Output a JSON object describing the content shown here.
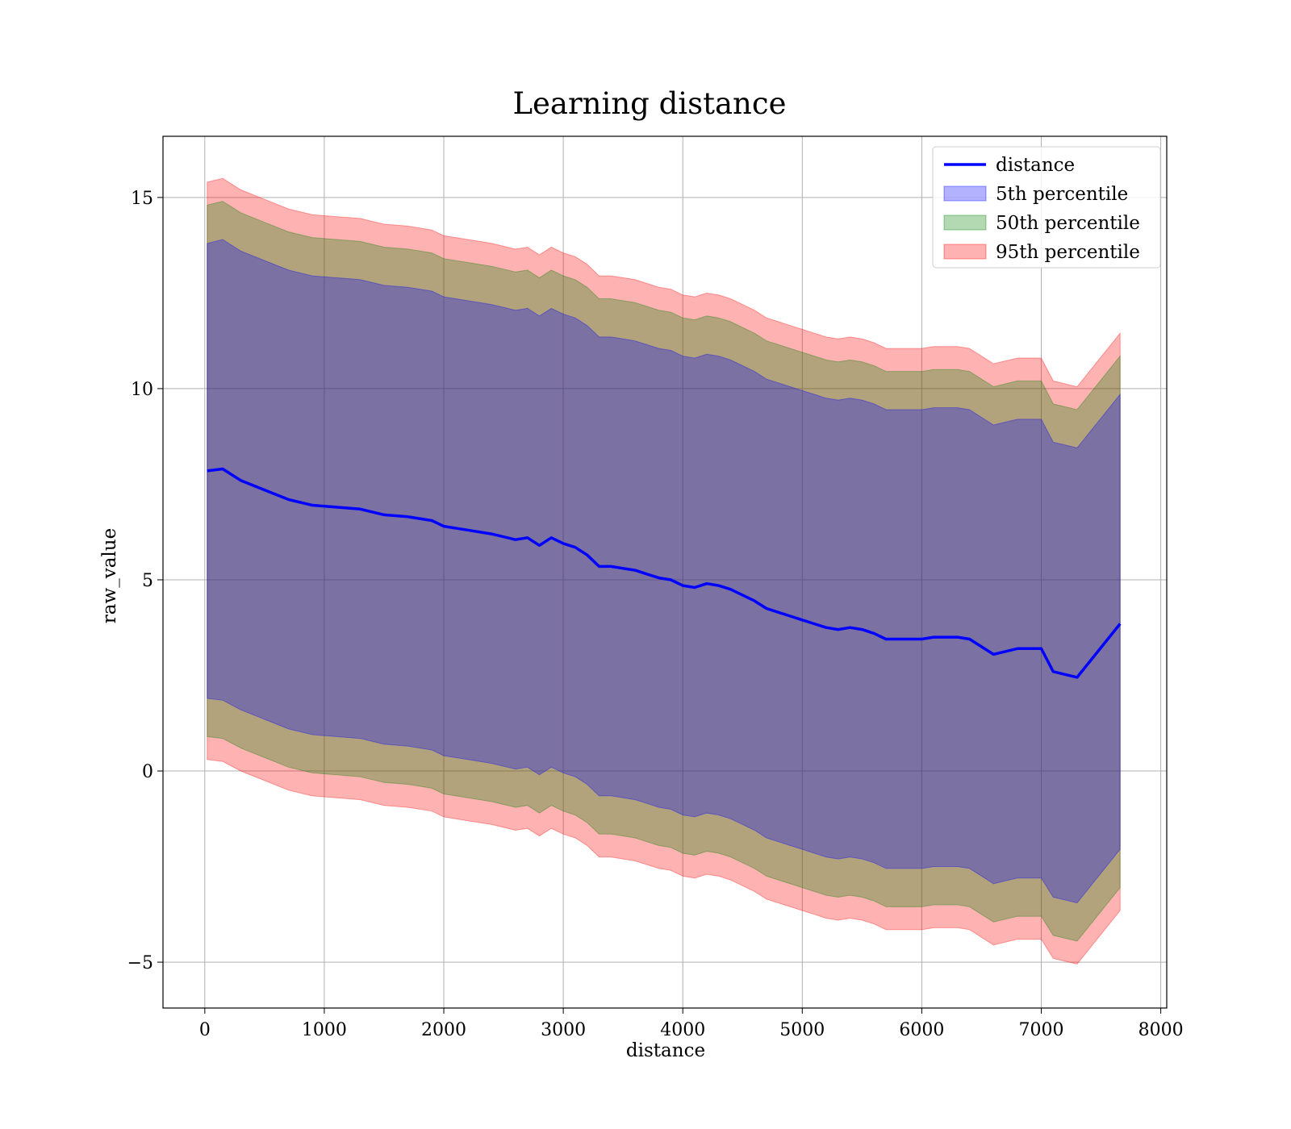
{
  "chart_data": {
    "type": "line",
    "title": "Learning distance",
    "xlabel": "distance",
    "ylabel": "raw_value",
    "xlim": [
      -350,
      8050
    ],
    "ylim": [
      -6.2,
      16.6
    ],
    "xticks": [
      0,
      1000,
      2000,
      3000,
      4000,
      5000,
      6000,
      7000,
      8000
    ],
    "xtick_labels": [
      "0",
      "1000",
      "2000",
      "3000",
      "4000",
      "5000",
      "6000",
      "7000",
      "8000"
    ],
    "yticks": [
      -5,
      0,
      5,
      10,
      15
    ],
    "ytick_labels": [
      "−5",
      "0",
      "5",
      "10",
      "15"
    ],
    "grid": true,
    "legend_position": "top-right",
    "x": [
      20,
      150,
      300,
      500,
      700,
      900,
      1100,
      1300,
      1500,
      1700,
      1900,
      2000,
      2200,
      2400,
      2600,
      2700,
      2800,
      2900,
      3000,
      3100,
      3200,
      3300,
      3400,
      3500,
      3600,
      3700,
      3800,
      3900,
      4000,
      4100,
      4200,
      4300,
      4400,
      4500,
      4600,
      4700,
      4800,
      4900,
      5000,
      5100,
      5200,
      5300,
      5400,
      5500,
      5600,
      5700,
      5800,
      5900,
      6000,
      6100,
      6200,
      6300,
      6400,
      6600,
      6800,
      7000,
      7100,
      7300,
      7660
    ],
    "series": [
      {
        "name": "distance",
        "kind": "line",
        "color": "#0000ff",
        "values": [
          7.85,
          7.9,
          7.6,
          7.35,
          7.1,
          6.95,
          6.9,
          6.85,
          6.7,
          6.65,
          6.55,
          6.4,
          6.3,
          6.2,
          6.05,
          6.1,
          5.9,
          6.1,
          5.95,
          5.85,
          5.65,
          5.35,
          5.35,
          5.3,
          5.25,
          5.15,
          5.05,
          5.0,
          4.85,
          4.8,
          4.9,
          4.85,
          4.75,
          4.6,
          4.45,
          4.25,
          4.15,
          4.05,
          3.95,
          3.85,
          3.75,
          3.7,
          3.75,
          3.7,
          3.6,
          3.45,
          3.45,
          3.45,
          3.45,
          3.5,
          3.5,
          3.5,
          3.45,
          3.05,
          3.2,
          3.2,
          2.6,
          2.45,
          3.85
        ]
      },
      {
        "name": "5th percentile",
        "kind": "band",
        "color": "#0000ff",
        "lower": [
          1.9,
          1.85,
          1.6,
          1.35,
          1.1,
          0.95,
          0.9,
          0.85,
          0.7,
          0.65,
          0.55,
          0.4,
          0.3,
          0.2,
          0.05,
          0.1,
          -0.1,
          0.1,
          -0.05,
          -0.15,
          -0.35,
          -0.65,
          -0.65,
          -0.7,
          -0.75,
          -0.85,
          -0.95,
          -1.0,
          -1.15,
          -1.2,
          -1.1,
          -1.15,
          -1.25,
          -1.4,
          -1.55,
          -1.75,
          -1.85,
          -1.95,
          -2.05,
          -2.15,
          -2.25,
          -2.3,
          -2.25,
          -2.3,
          -2.4,
          -2.55,
          -2.55,
          -2.55,
          -2.55,
          -2.5,
          -2.5,
          -2.5,
          -2.55,
          -2.95,
          -2.8,
          -2.8,
          -3.3,
          -3.45,
          -2.05
        ],
        "upper": [
          13.8,
          13.9,
          13.6,
          13.35,
          13.1,
          12.95,
          12.9,
          12.85,
          12.7,
          12.65,
          12.55,
          12.4,
          12.3,
          12.2,
          12.05,
          12.1,
          11.9,
          12.1,
          11.95,
          11.85,
          11.65,
          11.35,
          11.35,
          11.3,
          11.25,
          11.15,
          11.05,
          11.0,
          10.85,
          10.8,
          10.9,
          10.85,
          10.75,
          10.6,
          10.45,
          10.25,
          10.15,
          10.05,
          9.95,
          9.85,
          9.75,
          9.7,
          9.75,
          9.7,
          9.6,
          9.45,
          9.45,
          9.45,
          9.45,
          9.5,
          9.5,
          9.5,
          9.45,
          9.05,
          9.2,
          9.2,
          8.6,
          8.45,
          9.85
        ]
      },
      {
        "name": "50th percentile",
        "kind": "band",
        "color": "#008000",
        "lower": [
          0.9,
          0.85,
          0.6,
          0.35,
          0.1,
          -0.05,
          -0.1,
          -0.15,
          -0.3,
          -0.35,
          -0.45,
          -0.6,
          -0.7,
          -0.8,
          -0.95,
          -0.9,
          -1.1,
          -0.9,
          -1.05,
          -1.15,
          -1.35,
          -1.65,
          -1.65,
          -1.7,
          -1.75,
          -1.85,
          -1.95,
          -2.0,
          -2.15,
          -2.2,
          -2.1,
          -2.15,
          -2.25,
          -2.4,
          -2.55,
          -2.75,
          -2.85,
          -2.95,
          -3.05,
          -3.15,
          -3.25,
          -3.3,
          -3.25,
          -3.3,
          -3.4,
          -3.55,
          -3.55,
          -3.55,
          -3.55,
          -3.5,
          -3.5,
          -3.5,
          -3.55,
          -3.95,
          -3.8,
          -3.8,
          -4.3,
          -4.45,
          -3.05
        ],
        "upper": [
          14.8,
          14.9,
          14.6,
          14.35,
          14.1,
          13.95,
          13.9,
          13.85,
          13.7,
          13.65,
          13.55,
          13.4,
          13.3,
          13.2,
          13.05,
          13.1,
          12.9,
          13.1,
          12.95,
          12.85,
          12.65,
          12.35,
          12.35,
          12.3,
          12.25,
          12.15,
          12.05,
          12.0,
          11.85,
          11.8,
          11.9,
          11.85,
          11.75,
          11.6,
          11.45,
          11.25,
          11.15,
          11.05,
          10.95,
          10.85,
          10.75,
          10.7,
          10.75,
          10.7,
          10.6,
          10.45,
          10.45,
          10.45,
          10.45,
          10.5,
          10.5,
          10.5,
          10.45,
          10.05,
          10.2,
          10.2,
          9.6,
          9.45,
          10.85
        ]
      },
      {
        "name": "95th percentile",
        "kind": "band",
        "color": "#ff0000",
        "lower": [
          0.3,
          0.25,
          0.0,
          -0.25,
          -0.5,
          -0.65,
          -0.7,
          -0.75,
          -0.9,
          -0.95,
          -1.05,
          -1.2,
          -1.3,
          -1.4,
          -1.55,
          -1.5,
          -1.7,
          -1.5,
          -1.65,
          -1.75,
          -1.95,
          -2.25,
          -2.25,
          -2.3,
          -2.35,
          -2.45,
          -2.55,
          -2.6,
          -2.75,
          -2.8,
          -2.7,
          -2.75,
          -2.85,
          -3.0,
          -3.15,
          -3.35,
          -3.45,
          -3.55,
          -3.65,
          -3.75,
          -3.85,
          -3.9,
          -3.85,
          -3.9,
          -4.0,
          -4.15,
          -4.15,
          -4.15,
          -4.15,
          -4.1,
          -4.1,
          -4.1,
          -4.15,
          -4.55,
          -4.4,
          -4.4,
          -4.9,
          -5.05,
          -3.65
        ],
        "upper": [
          15.4,
          15.5,
          15.2,
          14.95,
          14.7,
          14.55,
          14.5,
          14.45,
          14.3,
          14.25,
          14.15,
          14.0,
          13.9,
          13.8,
          13.65,
          13.7,
          13.5,
          13.7,
          13.55,
          13.45,
          13.25,
          12.95,
          12.95,
          12.9,
          12.85,
          12.75,
          12.65,
          12.6,
          12.45,
          12.4,
          12.5,
          12.45,
          12.35,
          12.2,
          12.05,
          11.85,
          11.75,
          11.65,
          11.55,
          11.45,
          11.35,
          11.3,
          11.35,
          11.3,
          11.2,
          11.05,
          11.05,
          11.05,
          11.05,
          11.1,
          11.1,
          11.1,
          11.05,
          10.65,
          10.8,
          10.8,
          10.2,
          10.05,
          11.45
        ]
      }
    ]
  }
}
